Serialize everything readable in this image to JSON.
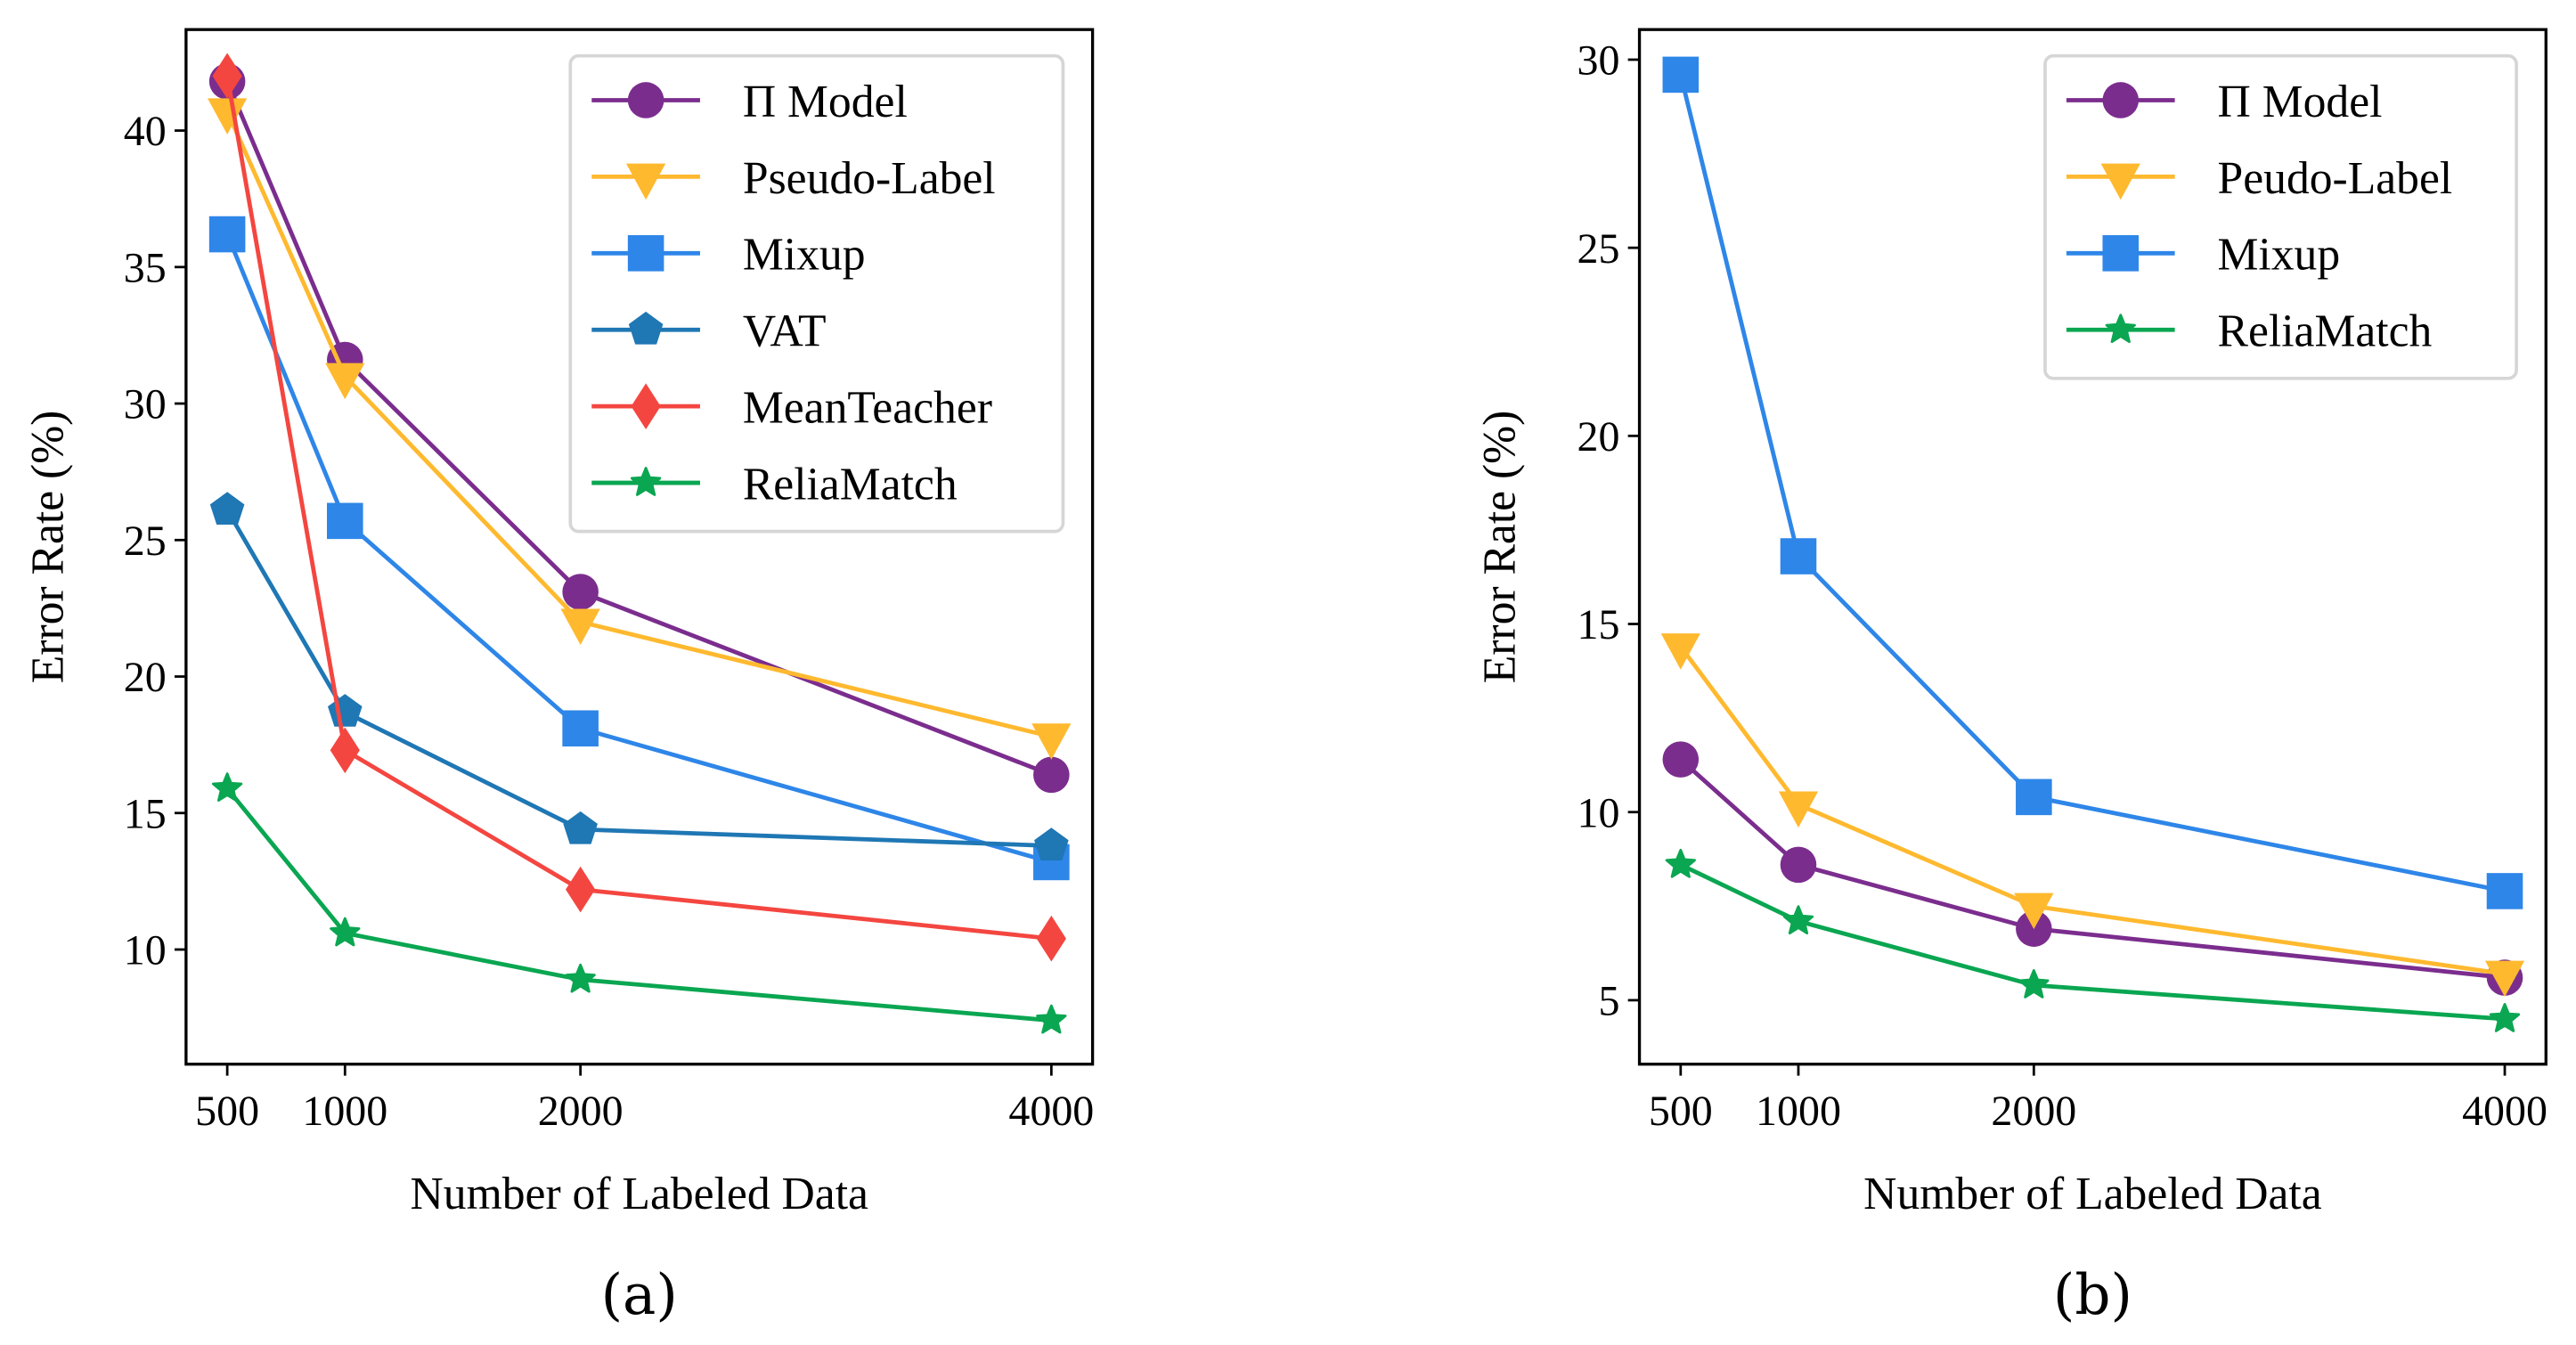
{
  "chart_data": [
    {
      "type": "line",
      "caption": "(a)",
      "xlabel": "Number of Labeled Data",
      "ylabel": "Error Rate (%)",
      "x": [
        500,
        1000,
        2000,
        4000
      ],
      "xticks": [
        500,
        1000,
        2000,
        4000
      ],
      "yticks": [
        10,
        15,
        20,
        25,
        30,
        35,
        40
      ],
      "xlim": [
        325,
        4175
      ],
      "ylim": [
        5.8,
        43.7
      ],
      "grid": false,
      "legend_position": "top-right",
      "series": [
        {
          "name": "Π Model",
          "color": "#7B2D8E",
          "marker": "circle",
          "values": [
            41.8,
            31.6,
            23.1,
            16.4
          ]
        },
        {
          "name": "Pseudo-Label",
          "color": "#FFB92F",
          "marker": "triangle-down",
          "values": [
            40.7,
            31.0,
            22.0,
            17.8
          ]
        },
        {
          "name": "Mixup",
          "color": "#2E86E8",
          "marker": "square",
          "values": [
            36.2,
            25.7,
            18.1,
            13.2
          ]
        },
        {
          "name": "VAT",
          "color": "#1F77B4",
          "marker": "pentagon",
          "values": [
            26.1,
            18.7,
            14.4,
            13.8
          ]
        },
        {
          "name": "MeanTeacher",
          "color": "#F44640",
          "marker": "diamond",
          "values": [
            42.0,
            17.3,
            12.2,
            10.4
          ]
        },
        {
          "name": "ReliaMatch",
          "color": "#0AA651",
          "marker": "star",
          "values": [
            15.9,
            10.6,
            8.9,
            7.4
          ]
        }
      ]
    },
    {
      "type": "line",
      "caption": "(b)",
      "xlabel": "Number of Labeled Data",
      "ylabel": "Error Rate (%)",
      "x": [
        500,
        1000,
        2000,
        4000
      ],
      "xticks": [
        500,
        1000,
        2000,
        4000
      ],
      "yticks": [
        5,
        10,
        15,
        20,
        25,
        30
      ],
      "xlim": [
        325,
        4175
      ],
      "ylim": [
        3.3,
        30.8
      ],
      "grid": false,
      "legend_position": "top-right",
      "series": [
        {
          "name": "Π Model",
          "color": "#7B2D8E",
          "marker": "circle",
          "values": [
            11.4,
            8.6,
            6.9,
            5.6
          ]
        },
        {
          "name": "Peudo-Label",
          "color": "#FFB92F",
          "marker": "triangle-down",
          "values": [
            14.4,
            10.2,
            7.5,
            5.7
          ]
        },
        {
          "name": "Mixup",
          "color": "#2E86E8",
          "marker": "square",
          "values": [
            29.6,
            16.8,
            10.4,
            7.9
          ]
        },
        {
          "name": "ReliaMatch",
          "color": "#0AA651",
          "marker": "star",
          "values": [
            8.6,
            7.1,
            5.4,
            4.5
          ]
        }
      ]
    }
  ]
}
